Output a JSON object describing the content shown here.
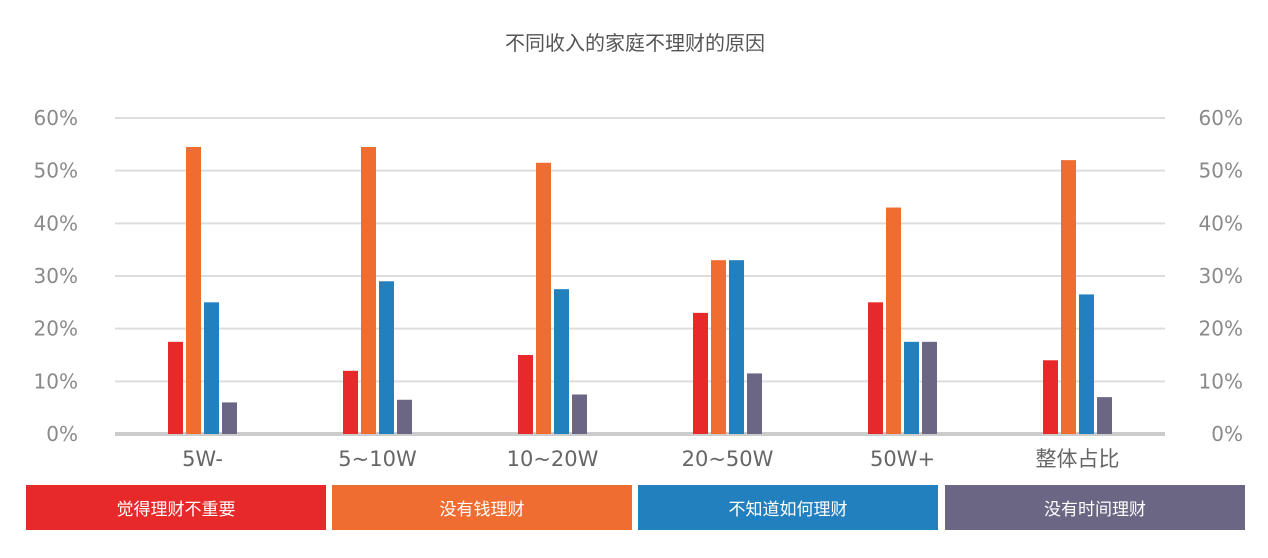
{
  "chart_data": {
    "type": "bar",
    "title": "不同收入的家庭不理财的原因",
    "categories": [
      "5W-",
      "5~10W",
      "10~20W",
      "20~50W",
      "50W+",
      "整体占比"
    ],
    "series": [
      {
        "name": "觉得理财不重要",
        "color": "#E8292A",
        "values": [
          17.5,
          12,
          15,
          23,
          25,
          14
        ]
      },
      {
        "name": "没有钱理财",
        "color": "#F06D32",
        "values": [
          54.5,
          54.5,
          51.5,
          33,
          43,
          52
        ]
      },
      {
        "name": "不知道如何理财",
        "color": "#2280BE",
        "values": [
          25,
          29,
          27.5,
          33,
          17.5,
          26.5
        ]
      },
      {
        "name": "没有时间理财",
        "color": "#6A6683",
        "values": [
          6,
          6.5,
          7.5,
          11.5,
          17.5,
          7
        ]
      }
    ],
    "ylim": [
      0,
      60
    ],
    "yticks": [
      "0%",
      "10%",
      "20%",
      "30%",
      "40%",
      "50%",
      "60%"
    ],
    "grid": true,
    "legend_placement": "bottom"
  }
}
